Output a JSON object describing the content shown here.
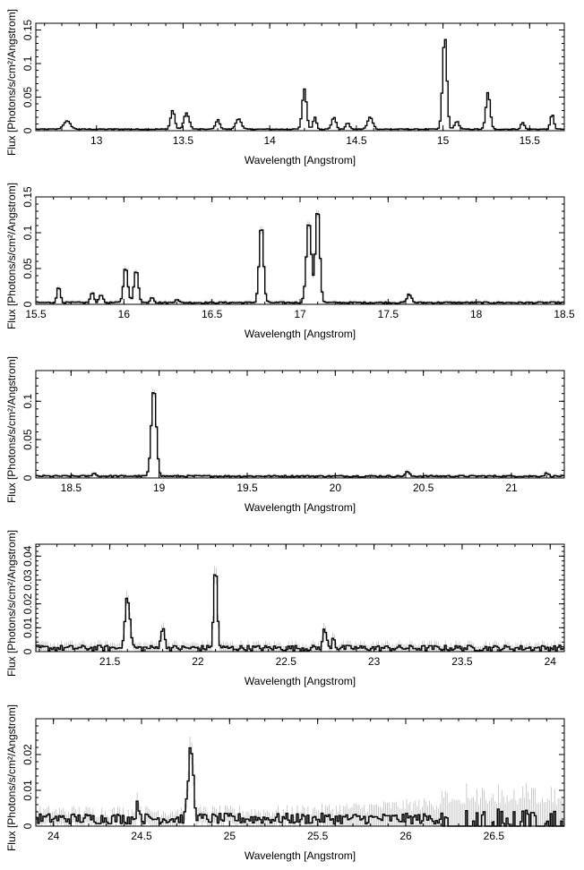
{
  "chart_data": [
    {
      "type": "line",
      "title": "",
      "xlabel": "Wavelength [Angstrom]",
      "ylabel": "Flux [Photons/s/cm²/Angstrom]",
      "xlim": [
        12.65,
        15.7
      ],
      "ylim": [
        0,
        0.16
      ],
      "xticks": [
        13,
        13.5,
        14,
        14.5,
        15,
        15.5
      ],
      "yticks": [
        0,
        0.05,
        0.1,
        0.15
      ],
      "baseline": 0.002,
      "lines": [
        {
          "x": 12.83,
          "y": 0.012,
          "w": 0.02
        },
        {
          "x": 13.44,
          "y": 0.028,
          "w": 0.012
        },
        {
          "x": 13.52,
          "y": 0.024,
          "w": 0.015
        },
        {
          "x": 13.7,
          "y": 0.014,
          "w": 0.012
        },
        {
          "x": 13.82,
          "y": 0.016,
          "w": 0.015
        },
        {
          "x": 14.2,
          "y": 0.06,
          "w": 0.012
        },
        {
          "x": 14.26,
          "y": 0.018,
          "w": 0.01
        },
        {
          "x": 14.37,
          "y": 0.018,
          "w": 0.012
        },
        {
          "x": 14.45,
          "y": 0.01,
          "w": 0.01
        },
        {
          "x": 14.58,
          "y": 0.018,
          "w": 0.015
        },
        {
          "x": 15.01,
          "y": 0.14,
          "w": 0.012
        },
        {
          "x": 15.08,
          "y": 0.012,
          "w": 0.012
        },
        {
          "x": 15.26,
          "y": 0.055,
          "w": 0.012
        },
        {
          "x": 15.46,
          "y": 0.01,
          "w": 0.01
        },
        {
          "x": 15.63,
          "y": 0.022,
          "w": 0.01
        }
      ],
      "errors": "none"
    },
    {
      "type": "line",
      "title": "",
      "xlabel": "Wavelength [Angstrom]",
      "ylabel": "Flux [Photons/s/cm²/Angstrom]",
      "xlim": [
        15.5,
        18.5
      ],
      "ylim": [
        0,
        0.15
      ],
      "xticks": [
        15.5,
        16,
        16.5,
        17,
        17.5,
        18,
        18.5
      ],
      "yticks": [
        0,
        0.05,
        0.1,
        0.15
      ],
      "baseline": 0.002,
      "lines": [
        {
          "x": 15.63,
          "y": 0.022,
          "w": 0.01
        },
        {
          "x": 15.82,
          "y": 0.014,
          "w": 0.01
        },
        {
          "x": 15.87,
          "y": 0.012,
          "w": 0.01
        },
        {
          "x": 16.01,
          "y": 0.05,
          "w": 0.012
        },
        {
          "x": 16.07,
          "y": 0.046,
          "w": 0.012
        },
        {
          "x": 16.16,
          "y": 0.008,
          "w": 0.01
        },
        {
          "x": 16.3,
          "y": 0.005,
          "w": 0.01
        },
        {
          "x": 16.78,
          "y": 0.11,
          "w": 0.012
        },
        {
          "x": 17.05,
          "y": 0.115,
          "w": 0.014
        },
        {
          "x": 17.1,
          "y": 0.135,
          "w": 0.012
        },
        {
          "x": 17.62,
          "y": 0.012,
          "w": 0.012
        }
      ],
      "errors": "small"
    },
    {
      "type": "line",
      "title": "",
      "xlabel": "Wavelength [Angstrom]",
      "ylabel": "Flux [Photons/s/cm²/Angstrom]",
      "xlim": [
        18.3,
        21.3
      ],
      "ylim": [
        0,
        0.14
      ],
      "xticks": [
        18.5,
        19,
        19.5,
        20,
        20.5,
        21
      ],
      "yticks": [
        0,
        0.05,
        0.1
      ],
      "baseline": 0.002,
      "lines": [
        {
          "x": 18.63,
          "y": 0.004,
          "w": 0.01
        },
        {
          "x": 18.97,
          "y": 0.115,
          "w": 0.014
        },
        {
          "x": 20.41,
          "y": 0.006,
          "w": 0.01
        },
        {
          "x": 21.2,
          "y": 0.004,
          "w": 0.01
        }
      ],
      "errors": "small"
    },
    {
      "type": "line",
      "title": "",
      "xlabel": "Wavelength [Angstrom]",
      "ylabel": "Flux [Photons/s/cm²/Angstrom]",
      "xlim": [
        21.08,
        24.08
      ],
      "ylim": [
        0,
        0.045
      ],
      "xticks": [
        21.5,
        22,
        22.5,
        23,
        23.5,
        24
      ],
      "yticks": [
        0,
        0.01,
        0.02,
        0.03,
        0.04
      ],
      "baseline": 0.001,
      "lines": [
        {
          "x": 21.6,
          "y": 0.021,
          "w": 0.014
        },
        {
          "x": 21.8,
          "y": 0.008,
          "w": 0.012
        },
        {
          "x": 22.1,
          "y": 0.034,
          "w": 0.01
        },
        {
          "x": 22.72,
          "y": 0.008,
          "w": 0.01
        },
        {
          "x": 22.77,
          "y": 0.005,
          "w": 0.008
        }
      ],
      "errors": "medium"
    },
    {
      "type": "line",
      "title": "",
      "xlabel": "Wavelength [Angstrom]",
      "ylabel": "Flux [Photons/s/cm²/Angstrom]",
      "xlim": [
        23.9,
        26.9
      ],
      "ylim": [
        0,
        0.03
      ],
      "xticks": [
        24,
        24.5,
        25,
        25.5,
        26,
        26.5
      ],
      "yticks": [
        0,
        0.01,
        0.02
      ],
      "baseline": 0.0015,
      "lines": [
        {
          "x": 24.78,
          "y": 0.02,
          "w": 0.014
        },
        {
          "x": 24.48,
          "y": 0.004,
          "w": 0.01
        },
        {
          "x": 26.55,
          "y": 0.009,
          "w": 0.006
        }
      ],
      "errors": "large"
    }
  ]
}
